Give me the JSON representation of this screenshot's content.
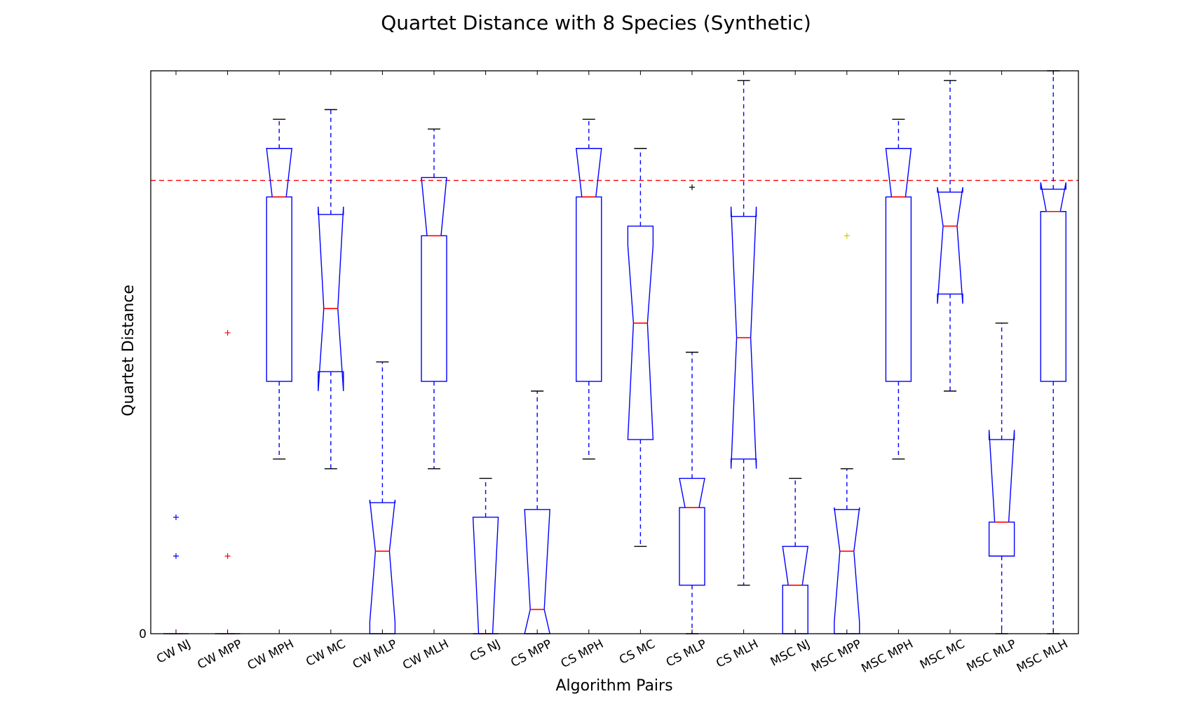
{
  "chart_data": {
    "type": "boxplot",
    "title": "Quartet Distance with 8 Species (Synthetic)",
    "xlabel": "Algorithm Pairs",
    "ylabel": "Quartet Distance",
    "y_tick_labels": [
      "0"
    ],
    "ylim": [
      0,
      580
    ],
    "notched": true,
    "reference_line": {
      "y": 467,
      "color": "#ff0000",
      "style": "dashed"
    },
    "colors": {
      "box": "#0000ff",
      "median": "#ff0000",
      "whisker": "#0000ff",
      "cap": "#000000",
      "frame": "#000000"
    },
    "categories": [
      "CW NJ",
      "CW MPP",
      "CW MPH",
      "CW MC",
      "CW MLP",
      "CW MLH",
      "CS NJ",
      "CS MPP",
      "CS MPH",
      "CS MC",
      "CS MLP",
      "CS MLH",
      "MSC NJ",
      "MSC MPP",
      "MSC MPH",
      "MSC MC",
      "MSC MLP",
      "MSC MLH"
    ],
    "boxes": [
      {
        "label": "CW NJ",
        "q1": 0,
        "median": 0,
        "q3": 0,
        "whislo": 0,
        "whishi": 0,
        "notch_lo": 0,
        "notch_hi": 0,
        "fliers": [
          80,
          120
        ],
        "flier_color": "#0000ff"
      },
      {
        "label": "CW MPP",
        "q1": 0,
        "median": 0,
        "q3": 0,
        "whislo": 0,
        "whishi": 0,
        "notch_lo": 0,
        "notch_hi": 0,
        "fliers": [
          80,
          310
        ],
        "flier_color": "#ff0000"
      },
      {
        "label": "CW MPH",
        "q1": 260,
        "median": 450,
        "q3": 500,
        "whislo": 180,
        "whishi": 530,
        "notch_lo": 450,
        "notch_hi": 500,
        "fliers": []
      },
      {
        "label": "CW MC",
        "q1": 270,
        "median": 335,
        "q3": 432,
        "whislo": 170,
        "whishi": 540,
        "notch_lo": 250,
        "notch_hi": 440,
        "fliers": []
      },
      {
        "label": "CW MLP",
        "q1": 0,
        "median": 85,
        "q3": 135,
        "whislo": 0,
        "whishi": 280,
        "notch_lo": 12,
        "notch_hi": 138,
        "fliers": []
      },
      {
        "label": "CW MLH",
        "q1": 260,
        "median": 410,
        "q3": 470,
        "whislo": 170,
        "whishi": 520,
        "notch_lo": 410,
        "notch_hi": 470,
        "fliers": []
      },
      {
        "label": "CS NJ",
        "q1": 0,
        "median": 0,
        "q3": 120,
        "whislo": 0,
        "whishi": 160,
        "notch_lo": 0,
        "notch_hi": 120,
        "fliers": []
      },
      {
        "label": "CS MPP",
        "q1": 0,
        "median": 25,
        "q3": 128,
        "whislo": 0,
        "whishi": 250,
        "notch_lo": 0,
        "notch_hi": 128,
        "fliers": []
      },
      {
        "label": "CS MPH",
        "q1": 260,
        "median": 450,
        "q3": 500,
        "whislo": 180,
        "whishi": 530,
        "notch_lo": 450,
        "notch_hi": 500,
        "fliers": []
      },
      {
        "label": "CS MC",
        "q1": 200,
        "median": 320,
        "q3": 420,
        "whislo": 90,
        "whishi": 500,
        "notch_lo": 200,
        "notch_hi": 400,
        "fliers": []
      },
      {
        "label": "CS MLP",
        "q1": 50,
        "median": 130,
        "q3": 160,
        "whislo": 0,
        "whishi": 290,
        "notch_lo": 130,
        "notch_hi": 160,
        "fliers": [
          460
        ],
        "flier_color": "#000000"
      },
      {
        "label": "CS MLH",
        "q1": 180,
        "median": 305,
        "q3": 430,
        "whislo": 50,
        "whishi": 570,
        "notch_lo": 170,
        "notch_hi": 440,
        "fliers": []
      },
      {
        "label": "MSC NJ",
        "q1": 0,
        "median": 50,
        "q3": 90,
        "whislo": 0,
        "whishi": 160,
        "notch_lo": 50,
        "notch_hi": 90,
        "fliers": []
      },
      {
        "label": "MSC MPP",
        "q1": 0,
        "median": 85,
        "q3": 128,
        "whislo": 0,
        "whishi": 170,
        "notch_lo": 12,
        "notch_hi": 130,
        "fliers": [
          410
        ],
        "flier_color": "#cccc00"
      },
      {
        "label": "MSC MPH",
        "q1": 260,
        "median": 450,
        "q3": 500,
        "whislo": 180,
        "whishi": 530,
        "notch_lo": 450,
        "notch_hi": 500,
        "fliers": []
      },
      {
        "label": "MSC MC",
        "q1": 350,
        "median": 420,
        "q3": 455,
        "whislo": 250,
        "whishi": 570,
        "notch_lo": 340,
        "notch_hi": 460,
        "fliers": []
      },
      {
        "label": "MSC MLP",
        "q1": 80,
        "median": 115,
        "q3": 200,
        "whislo": 0,
        "whishi": 320,
        "notch_lo": 115,
        "notch_hi": 210,
        "fliers": []
      },
      {
        "label": "MSC MLH",
        "q1": 260,
        "median": 435,
        "q3": 458,
        "whislo": 0,
        "whishi": 580,
        "notch_lo": 435,
        "notch_hi": 465,
        "fliers": []
      }
    ]
  }
}
